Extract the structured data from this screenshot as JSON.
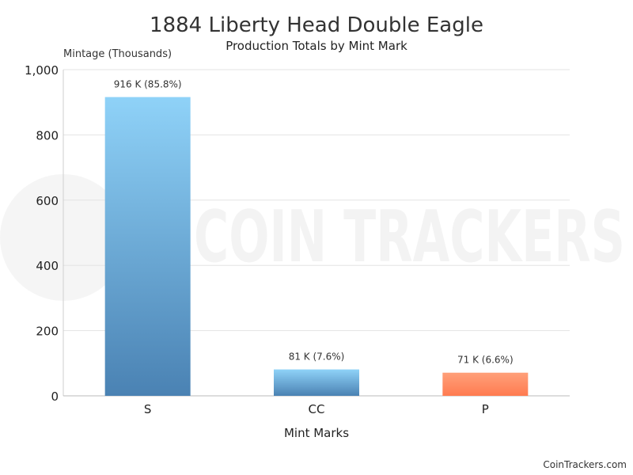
{
  "chart_data": {
    "type": "bar",
    "title": "1884 Liberty Head Double Eagle",
    "subtitle": "Production Totals by Mint Mark",
    "ylabel": "Mintage (Thousands)",
    "xlabel": "Mint Marks",
    "categories": [
      "S",
      "CC",
      "P"
    ],
    "values": [
      916,
      81,
      71
    ],
    "data_labels": [
      "916 K (85.8%)",
      "81 K (7.6%)",
      "71 K (6.6%)"
    ],
    "ylim": [
      0,
      1000
    ],
    "yticks": [
      0,
      200,
      400,
      600,
      800,
      1000
    ],
    "ytick_labels": [
      "0",
      "200",
      "400",
      "600",
      "800",
      "1,000"
    ],
    "grid": true,
    "bar_colors": [
      [
        "#8fd2f8",
        "#4a82b3"
      ],
      [
        "#8fd2f8",
        "#4a82b3"
      ],
      [
        "#ffa07a",
        "#ff7b50"
      ]
    ]
  },
  "watermark": {
    "text": "COIN TRACKERS"
  },
  "footer": {
    "credit": "CoinTrackers.com"
  }
}
